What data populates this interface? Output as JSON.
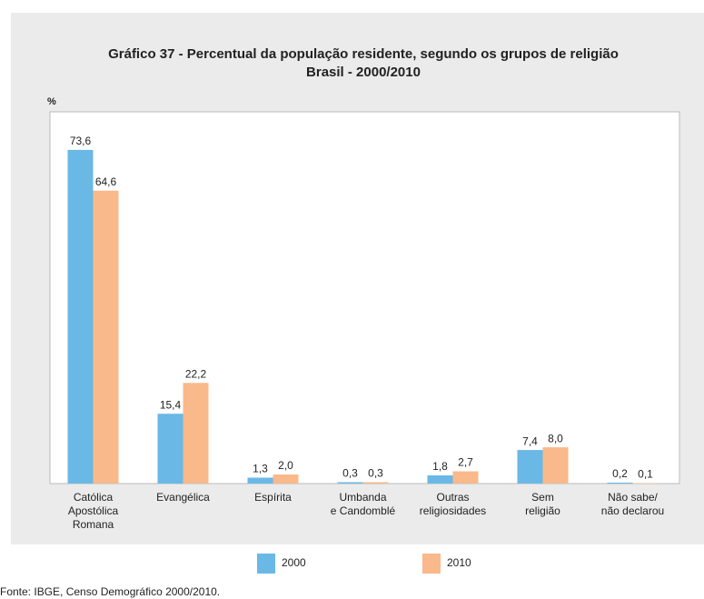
{
  "chart_data": {
    "type": "bar",
    "title": "Gráfico 37 - Percentual da população residente, segundo os grupos de religião",
    "subtitle": "Brasil - 2000/2010",
    "y_label": "%",
    "categories": [
      "Católica\nApostólica\nRomana",
      "Evangélica",
      "Espírita",
      "Umbanda\ne Candomblé",
      "Outras\nreligiosidades",
      "Sem\nreligião",
      "Não sabe/\nnão declarou"
    ],
    "series": [
      {
        "name": "2000",
        "color": "#6ab8e6",
        "values": [
          73.6,
          15.4,
          1.3,
          0.3,
          1.8,
          7.4,
          0.2
        ],
        "value_labels": [
          "73,6",
          "15,4",
          "1,3",
          "0,3",
          "1,8",
          "7,4",
          "0,2"
        ]
      },
      {
        "name": "2010",
        "color": "#f9b98a",
        "values": [
          64.6,
          22.2,
          2.0,
          0.3,
          2.7,
          8.0,
          0.1
        ],
        "value_labels": [
          "64,6",
          "22,2",
          "2,0",
          "0,3",
          "2,7",
          "8,0",
          "0,1"
        ]
      }
    ],
    "ylim": [
      0,
      82
    ],
    "source": "Fonte: IBGE, Censo Demográfico 2000/2010."
  }
}
